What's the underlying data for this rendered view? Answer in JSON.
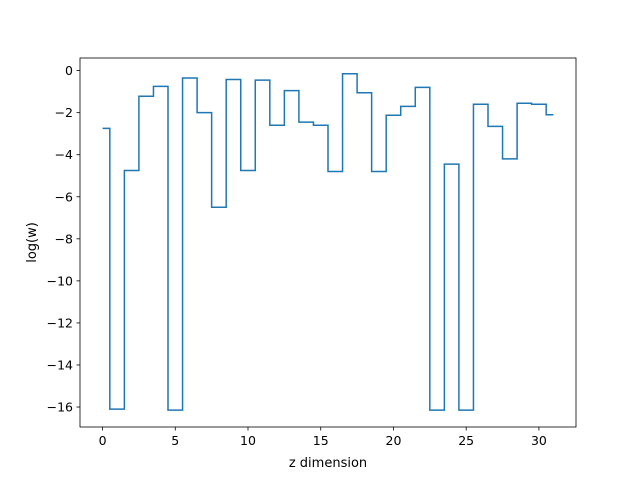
{
  "chart_data": {
    "type": "line",
    "drawstyle": "steps-mid",
    "title": "",
    "xlabel": "z dimension",
    "ylabel": "log(w)",
    "xlim": [
      -1.55,
      32.55
    ],
    "ylim": [
      -16.95,
      0.6
    ],
    "xticks": [
      0,
      5,
      10,
      15,
      20,
      25,
      30
    ],
    "yticks": [
      0,
      -2,
      -4,
      -6,
      -8,
      -10,
      -12,
      -14,
      -16
    ],
    "grid": false,
    "legend": "none",
    "series": [
      {
        "color": "#1f77b4",
        "x": [
          0,
          1,
          2,
          3,
          4,
          5,
          6,
          7,
          8,
          9,
          10,
          11,
          12,
          13,
          14,
          15,
          16,
          17,
          18,
          19,
          20,
          21,
          22,
          23,
          24,
          25,
          26,
          27,
          28,
          29,
          30,
          31
        ],
        "y": [
          -2.75,
          -16.1,
          -4.75,
          -1.22,
          -0.75,
          -16.15,
          -0.35,
          -2.0,
          -6.5,
          -0.42,
          -4.75,
          -0.45,
          -2.6,
          -0.95,
          -2.45,
          -2.6,
          -4.8,
          -0.15,
          -1.05,
          -4.8,
          -2.12,
          -1.7,
          -0.8,
          -16.15,
          -4.45,
          -16.15,
          -1.6,
          -2.65,
          -4.2,
          -1.55,
          -1.6,
          -2.1
        ]
      }
    ]
  }
}
